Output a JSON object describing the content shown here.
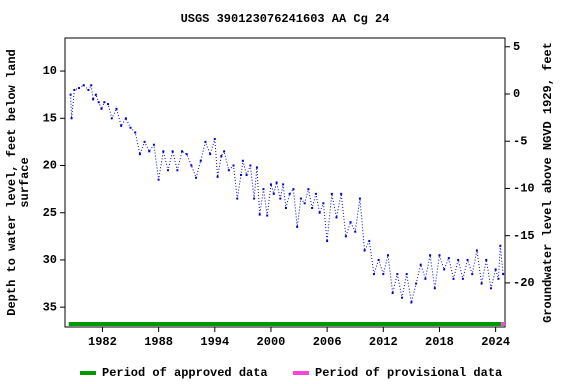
{
  "chart_data": {
    "type": "line",
    "title": "USGS 390123076241603 AA Cg  24",
    "ylabel": [
      "Depth to water level, feet below land",
      "surface"
    ],
    "y2label": "Groundwater level above NGVD 1929, feet",
    "color": "#0000cc",
    "x": [
      1978.6,
      1978.7,
      1979,
      1979.5,
      1980,
      1980.5,
      1980.8,
      1981,
      1981.3,
      1981.6,
      1981.9,
      1982.2,
      1982.6,
      1983,
      1983.5,
      1984,
      1984.5,
      1985,
      1985.5,
      1986,
      1986.5,
      1987,
      1987.5,
      1988,
      1988.5,
      1989,
      1989.5,
      1990,
      1990.5,
      1991,
      1991.5,
      1992,
      1992.5,
      1993,
      1993.5,
      1994,
      1994.3,
      1994.7,
      1995,
      1995.5,
      1996,
      1996.4,
      1996.8,
      1997,
      1997.4,
      1997.8,
      1998.2,
      1998.5,
      1998.8,
      1999.2,
      1999.6,
      2000,
      2000.3,
      2000.6,
      2001,
      2001.3,
      2001.6,
      2002,
      2002.4,
      2002.8,
      2003.2,
      2003.6,
      2004,
      2004.4,
      2004.8,
      2005.2,
      2005.6,
      2006,
      2006.5,
      2007,
      2007.5,
      2008,
      2008.5,
      2009,
      2009.5,
      2010,
      2010.5,
      2011,
      2011.5,
      2012,
      2012.5,
      2013,
      2013.5,
      2014,
      2014.5,
      2015,
      2015.5,
      2016,
      2016.5,
      2017,
      2017.5,
      2018,
      2018.5,
      2019,
      2019.5,
      2020,
      2020.5,
      2021,
      2021.5,
      2022,
      2022.5,
      2023,
      2023.5,
      2024,
      2024.3,
      2024.5,
      2024.8
    ],
    "values": [
      12.5,
      15.0,
      12.0,
      11.8,
      11.5,
      12.0,
      11.5,
      13.0,
      12.5,
      13.3,
      14.0,
      13.3,
      13.5,
      15.0,
      14.0,
      15.8,
      15.0,
      16.0,
      16.5,
      18.8,
      17.5,
      18.5,
      17.8,
      21.5,
      18.5,
      20.5,
      18.5,
      20.5,
      18.5,
      18.8,
      20.0,
      21.3,
      19.5,
      17.5,
      18.8,
      17.2,
      21.2,
      19.0,
      18.5,
      20.5,
      20.0,
      23.5,
      21.0,
      19.5,
      21.0,
      20.0,
      23.5,
      20.2,
      25.2,
      22.5,
      25.3,
      22.0,
      23.0,
      21.8,
      23.5,
      22.0,
      24.5,
      23.0,
      22.5,
      26.5,
      23.5,
      24.0,
      22.5,
      24.5,
      23.0,
      25.0,
      24.0,
      28.0,
      23.0,
      25.5,
      23.0,
      27.5,
      26.0,
      27.0,
      23.5,
      29.0,
      28.0,
      31.5,
      30.0,
      31.5,
      29.5,
      33.5,
      31.5,
      34.0,
      31.5,
      34.5,
      32.5,
      30.5,
      32.0,
      29.5,
      33.0,
      29.5,
      31.0,
      29.8,
      32.0,
      30.0,
      32.0,
      30.0,
      31.5,
      29.0,
      32.5,
      30.0,
      33.0,
      31.0,
      32.0,
      28.5,
      31.5
    ],
    "xlim": [
      1978,
      2025
    ],
    "xticks": [
      1982,
      1988,
      1994,
      2000,
      2006,
      2012,
      2018,
      2024
    ],
    "ylim": [
      6.5,
      37.1
    ],
    "yticks": [
      10,
      15,
      20,
      25,
      30,
      35
    ],
    "y2lim": [
      5.93,
      -24.67
    ],
    "y2ticks": [
      5,
      0,
      -5,
      -10,
      -15,
      -20
    ],
    "periods": [
      {
        "name": "Period of approved data",
        "color": "#009900",
        "range": [
          1978.4,
          2024.6
        ]
      },
      {
        "name": "Period of provisional data",
        "color": "#ff44dd",
        "range": [
          2024.6,
          2025
        ]
      }
    ]
  }
}
